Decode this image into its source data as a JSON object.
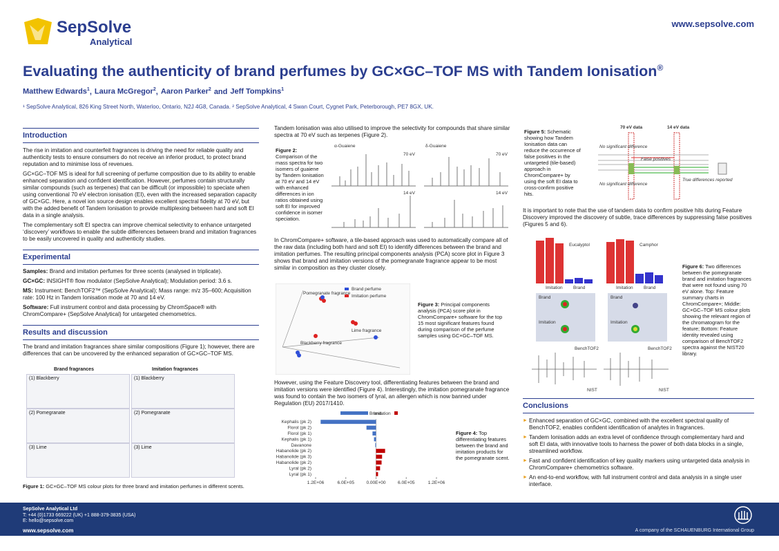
{
  "header": {
    "logo_name": "SepSolve",
    "logo_sub": "Analytical",
    "url": "www.sepsolve.com",
    "title": "Evaluating the authenticity of brand perfumes by GC×GC–TOF MS with Tandem Ionisation",
    "title_mark": "®",
    "authors": [
      {
        "name": "Matthew Edwards",
        "sup": "1",
        "sep": ","
      },
      {
        "name": "Laura McGregor",
        "sup": "2",
        "sep": ","
      },
      {
        "name": "Aaron Parker",
        "sup": "2",
        "sep": "and"
      },
      {
        "name": "Jeff Tompkins",
        "sup": "1"
      }
    ],
    "affiliations": "¹ SepSolve Analytical, 826 King Street North, Waterloo, Ontario, N2J 4G8, Canada. ² SepSolve Analytical, 4 Swan Court, Cygnet Park, Peterborough, PE7 8GX, UK."
  },
  "introduction": {
    "heading": "Introduction",
    "paragraphs": [
      "The rise in imitation and counterfeit fragrances is driving the need for reliable quality and authenticity tests to ensure consumers do not receive an inferior product, to protect brand reputation and to minimise loss of revenues.",
      "GC×GC–TOF MS is ideal for full screening of perfume composition due to its ability to enable enhanced separation and confident identification. However, perfumes contain structurally similar compounds (such as terpenes) that can be difficult (or impossible) to speciate when using conventional 70 eV electron ionisation (EI), even with the increased separation capacity of GC×GC. Here, a novel ion source design enables excellent spectral fidelity at 70 eV, but with the added benefit of Tandem Ionisation to provide multiplexing between hard and soft EI data in a single analysis.",
      "The complementary soft EI spectra can improve chemical selectivity to enhance untargeted ‘discovery’ workflows to enable the subtle differences between brand and imitation fragrances to be easily uncovered in quality and authenticity studies."
    ]
  },
  "experimental": {
    "heading": "Experimental",
    "items": [
      {
        "label": "Samples:",
        "text": "Brand and imitation perfumes for three scents (analysed in triplicate)."
      },
      {
        "label": "GC×GC:",
        "text": "INSIGHT® flow modulator (SepSolve Analytical); Modulation period: 3.6 s."
      },
      {
        "label": "MS:",
        "text": "Instrument: BenchTOF2™ (SepSolve Analytical); Mass range: m/z 35–600; Acquisition rate: 100 Hz in Tandem Ionisation mode at 70 and 14 eV."
      },
      {
        "label": "Software:",
        "text": "Full instrument control and data processing by ChromSpace® with ChromCompare+ (SepSolve Analytical) for untargeted chemometrics."
      }
    ]
  },
  "results": {
    "heading": "Results and discussion",
    "paragraphs": [
      "The brand and imitation fragrances share similar compositions (Figure 1); however, there are differences that can be uncovered by the enhanced separation of GC×GC–TOF MS.",
      "Tandem Ionisation was also utilised to improve the selectivity for compounds that share similar spectra at 70 eV such as terpenes (Figure 2).",
      "In ChromCompare+ software, a tile-based approach was used to automatically compare all of the raw data (including both hard and soft EI) to identify differences between the brand and imitation perfumes. The resulting principal components analysis (PCA) score plot in Figure 3 shows that brand and imitation versions of the pomegranate fragrance appear to be most similar in composition as they cluster closely.",
      "However, using the Feature Discovery tool, differentiating features between the brand and imitation versions were identified (Figure 4). Interestingly, the imitation pomegranate fragrance was found to contain the two isomers of lyral, an allergen which is now banned under Regulation (EU) 2017/1410.",
      "It is important to note that the use of tandem data to confirm positive hits during Feature Discovery improved the discovery of subtle, trace differences by suppressing false positives (Figures 5 and 6)."
    ]
  },
  "figure1": {
    "columns": [
      "Brand fragrances",
      "Imitation fragrances"
    ],
    "rows": [
      "(1) Blackberry",
      "(2) Pomegranate",
      "(3) Lime"
    ],
    "caption_label": "Figure 1:",
    "caption": "GC×GC–TOF MS colour plots for three brand and imitation perfumes in different scents."
  },
  "figure2": {
    "caption_label": "Figure 2:",
    "caption": "Comparison of the mass spectra for two isomers of guaiene by Tandem Ionisation at 70 eV and 14 eV with enhanced differences in ion ratios obtained using soft EI for improved confidence in isomer speciation.",
    "compounds": [
      "α-Guaiene",
      "δ-Guaiene"
    ],
    "energies": [
      "70 eV",
      "14 eV"
    ]
  },
  "figure3": {
    "caption_label": "Figure 3:",
    "caption": "Principal components analysis (PCA) score plot in ChromCompare+ software for the top 15 most significant features found during comparison of the perfume samples using GC×GC–TOF MS.",
    "legend": [
      "Brand perfume",
      "Imitation perfume"
    ],
    "groups": [
      "Pomegranate fragrance",
      "Lime fragrance",
      "Blackberry fragrance"
    ]
  },
  "figure4": {
    "type": "bar",
    "orientation": "horizontal",
    "categories": [
      "Kephalis (pk 2)",
      "Florol (pk 2)",
      "Florol (pk 1)",
      "Kephalis (pk 1)",
      "Davanone",
      "Habanolide (pk 2)",
      "Habanolide (pk 3)",
      "Habanolide (pk 2)",
      "Lyral (pk 2)",
      "Lyral (pk 1)"
    ],
    "series": [
      {
        "name": "Brand",
        "color": "#4472c4",
        "values": [
          -1100000,
          -190000,
          -70000,
          -40000,
          -15000,
          null,
          null,
          null,
          null,
          null
        ]
      },
      {
        "name": "Imitation",
        "color": "#c00000",
        "values": [
          null,
          null,
          null,
          null,
          null,
          180000,
          120000,
          110000,
          80000,
          40000
        ]
      }
    ],
    "xlim": [
      -1200000,
      1200000
    ],
    "xticks": [
      {
        "value": -1200000,
        "label": "1.2E+06"
      },
      {
        "value": -600000,
        "label": "6.0E+05"
      },
      {
        "value": 0,
        "label": "0.00E+00"
      },
      {
        "value": 600000,
        "label": "6.0E+05"
      },
      {
        "value": 1200000,
        "label": "1.2E+06"
      }
    ],
    "caption_label": "Figure 4:",
    "caption": "Top differentiating features between the brand and imitation products for the pomegranate scent."
  },
  "figure5": {
    "caption_label": "Figure 5:",
    "caption": "Schematic showing how Tandem Ionisation data can reduce the occurrence of false positives in the untargeted (tile-based) approach in ChromCompare+ by using the soft EI data to cross-confirm positive hits.",
    "headers": [
      "70 eV data",
      "14 eV data"
    ],
    "labels": [
      "No significant difference",
      "False positives",
      "No significant difference",
      "True differences reported"
    ]
  },
  "figure6": {
    "caption_label": "Figure 6:",
    "caption": "Two differences between the pomegranate brand and imitation fragrances that were not found using 70 eV alone. Top: Feature summary charts in ChromCompare+; Middle: GC×GC–TOF MS colour plots showing the relevant region of the chromatogram for the feature; Bottom: Feature identity revealed using comparison of BenchTOF2 spectra against the NIST20 library.",
    "compounds": [
      "Eucalyptol",
      "Camphor"
    ],
    "groups": [
      "Imitation",
      "Brand"
    ],
    "spectra": [
      "BenchTOF2",
      "NIST"
    ]
  },
  "conclusions": {
    "heading": "Conclusions",
    "items": [
      "Enhanced separation of GC×GC, combined with the excellent spectral quality of BenchTOF2, enables confident identification of analytes in fragrances.",
      "Tandem Ionisation adds an extra level of confidence through complementary hard and soft EI data, with innovative tools to harness the power of both data blocks in a single, streamlined workflow.",
      "Fast and confident identification of key quality markers using untargeted data analysis in ChromCompare+ chemometrics software.",
      "An end-to-end workflow, with full instrument control and data analysis in a single user interface."
    ]
  },
  "footer": {
    "company": "SepSolve Analytical Ltd",
    "phone": "T: +44 (0)1733 669222 (UK) +1 888-379-3835 (USA)",
    "email": "E: hello@sepsolve.com",
    "url": "www.sepsolve.com",
    "group": "A company of the SCHAUENBURG International Group"
  }
}
